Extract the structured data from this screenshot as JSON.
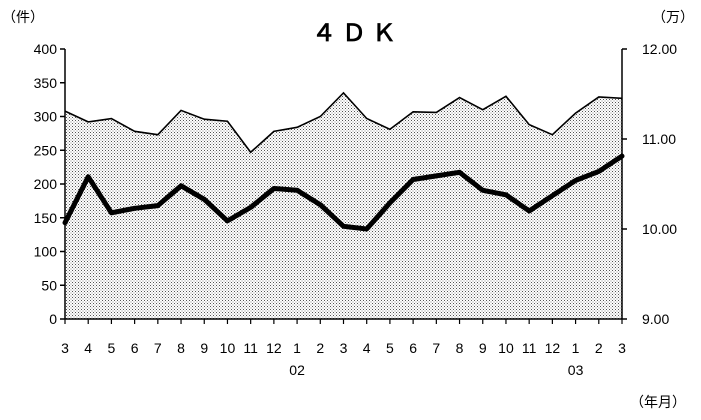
{
  "chart_data": {
    "type": "area",
    "title": "４ＤＫ",
    "left_axis": {
      "unit_label": "（件）",
      "ylim": [
        0,
        400
      ],
      "ticks": [
        "0",
        "50",
        "100",
        "150",
        "200",
        "250",
        "300",
        "350",
        "400"
      ]
    },
    "right_axis": {
      "unit_label": "（万）",
      "ylim": [
        9.0,
        12.0
      ],
      "ticks": [
        "9.00",
        "10.00",
        "11.00",
        "12.00"
      ]
    },
    "x_unit_label": "（年月）",
    "categories": [
      "3",
      "4",
      "5",
      "6",
      "7",
      "8",
      "9",
      "10",
      "11",
      "12",
      "1",
      "2",
      "3",
      "4",
      "5",
      "6",
      "7",
      "8",
      "9",
      "10",
      "11",
      "12",
      "1",
      "2",
      "3"
    ],
    "year_labels": [
      {
        "index": 10,
        "label": "02"
      },
      {
        "index": 22,
        "label": "03"
      }
    ],
    "series": [
      {
        "kind": "area",
        "axis": "left",
        "fill_pattern": "dotted",
        "values": [
          308,
          292,
          297,
          278,
          273,
          309,
          296,
          293,
          247,
          278,
          284,
          300,
          335,
          297,
          281,
          307,
          306,
          328,
          310,
          330,
          288,
          273,
          305,
          329,
          327
        ]
      },
      {
        "kind": "line",
        "axis": "right",
        "values": [
          10.07,
          10.58,
          10.18,
          10.23,
          10.26,
          10.48,
          10.33,
          10.09,
          10.24,
          10.45,
          10.43,
          10.27,
          10.03,
          10.0,
          10.29,
          10.55,
          10.59,
          10.63,
          10.43,
          10.38,
          10.2,
          10.37,
          10.54,
          10.64,
          10.81
        ]
      }
    ],
    "grid": false
  }
}
